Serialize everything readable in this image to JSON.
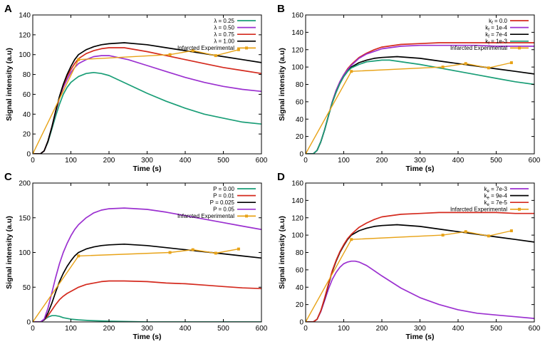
{
  "chart_data": [
    {
      "panel": "A",
      "type": "line",
      "xlabel": "Time (s)",
      "ylabel": "Signal intensity (a.u)",
      "xlim": [
        0,
        600
      ],
      "ylim": [
        0,
        140
      ],
      "xticks": [
        0,
        100,
        200,
        300,
        400,
        500,
        600
      ],
      "yticks": [
        0,
        20,
        40,
        60,
        80,
        100,
        120,
        140
      ],
      "legend_position": "top-right",
      "series": [
        {
          "name": "λ = 0.25",
          "color": "#1a9e77",
          "x": [
            0,
            20,
            30,
            40,
            50,
            60,
            70,
            80,
            90,
            100,
            110,
            120,
            140,
            160,
            180,
            200,
            250,
            300,
            350,
            400,
            450,
            500,
            550,
            600
          ],
          "y": [
            0,
            0,
            3,
            12,
            25,
            38,
            50,
            60,
            67,
            72,
            75,
            78,
            81,
            82,
            81,
            79,
            70,
            61,
            53,
            46,
            40,
            36,
            32,
            30
          ]
        },
        {
          "name": "λ = 0.50",
          "color": "#9b30d0",
          "x": [
            0,
            20,
            30,
            40,
            50,
            60,
            70,
            80,
            90,
            100,
            110,
            120,
            140,
            160,
            180,
            200,
            250,
            300,
            350,
            400,
            450,
            500,
            550,
            600
          ],
          "y": [
            0,
            0,
            3,
            13,
            27,
            42,
            56,
            67,
            75,
            82,
            87,
            91,
            95,
            98,
            99,
            99,
            95,
            89,
            83,
            77,
            72,
            68,
            65,
            63
          ]
        },
        {
          "name": "λ = 0.75",
          "color": "#d42a1e",
          "x": [
            0,
            20,
            30,
            40,
            50,
            60,
            70,
            80,
            90,
            100,
            110,
            120,
            140,
            160,
            180,
            200,
            240,
            300,
            350,
            400,
            450,
            500,
            550,
            600
          ],
          "y": [
            0,
            0,
            3,
            13,
            27,
            43,
            57,
            69,
            78,
            85,
            91,
            96,
            101,
            104,
            106,
            107,
            107,
            103,
            99,
            95,
            91,
            87,
            84,
            81
          ]
        },
        {
          "name": "λ = 1.00",
          "color": "#000000",
          "x": [
            0,
            20,
            30,
            40,
            50,
            60,
            70,
            80,
            90,
            100,
            110,
            120,
            140,
            160,
            180,
            200,
            240,
            300,
            350,
            400,
            450,
            500,
            550,
            600
          ],
          "y": [
            0,
            0,
            3,
            13,
            27,
            43,
            58,
            70,
            80,
            88,
            95,
            100,
            105,
            108,
            110,
            111,
            112,
            110,
            107,
            104,
            101,
            98,
            95,
            92
          ]
        },
        {
          "name": "Infarcted Experimental",
          "color": "#e8a318",
          "markers": true,
          "x": [
            0,
            120,
            360,
            420,
            480,
            540
          ],
          "y": [
            0,
            95,
            100,
            104,
            99,
            105
          ]
        }
      ]
    },
    {
      "panel": "B",
      "type": "line",
      "xlabel": "Time (s)",
      "ylabel": "Signal intensity (a.u)",
      "xlim": [
        0,
        600
      ],
      "ylim": [
        0,
        160
      ],
      "xticks": [
        0,
        100,
        200,
        300,
        400,
        500,
        600
      ],
      "yticks": [
        0,
        20,
        40,
        60,
        80,
        100,
        120,
        140,
        160
      ],
      "legend_position": "top-right",
      "series": [
        {
          "name": "kf = 0.0",
          "color": "#d42a1e",
          "x": [
            0,
            20,
            30,
            40,
            50,
            60,
            70,
            80,
            90,
            100,
            110,
            120,
            140,
            160,
            180,
            200,
            250,
            300,
            350,
            400,
            450,
            500,
            550,
            600
          ],
          "y": [
            0,
            0,
            4,
            14,
            28,
            44,
            60,
            73,
            83,
            91,
            98,
            103,
            111,
            116,
            120,
            123,
            126,
            127,
            128,
            128,
            128,
            128,
            128,
            128
          ]
        },
        {
          "name": "kf = 1e-4",
          "color": "#9b30d0",
          "x": [
            0,
            20,
            30,
            40,
            50,
            60,
            70,
            80,
            90,
            100,
            110,
            120,
            140,
            160,
            180,
            200,
            250,
            300,
            350,
            400,
            450,
            500,
            550,
            600
          ],
          "y": [
            0,
            0,
            4,
            14,
            28,
            44,
            60,
            73,
            83,
            91,
            97,
            102,
            110,
            115,
            118,
            121,
            124,
            125,
            125,
            125,
            125,
            124,
            124,
            124
          ]
        },
        {
          "name": "kf = 7e-4",
          "color": "#000000",
          "x": [
            0,
            20,
            30,
            40,
            50,
            60,
            70,
            80,
            90,
            100,
            110,
            120,
            140,
            160,
            180,
            200,
            240,
            300,
            350,
            400,
            450,
            500,
            550,
            600
          ],
          "y": [
            0,
            0,
            4,
            14,
            28,
            44,
            59,
            71,
            81,
            89,
            95,
            100,
            105,
            108,
            110,
            111,
            112,
            110,
            107,
            104,
            101,
            98,
            95,
            92
          ]
        },
        {
          "name": "kf = 1e-3",
          "color": "#1a9e77",
          "x": [
            0,
            20,
            30,
            40,
            50,
            60,
            70,
            80,
            90,
            100,
            110,
            120,
            140,
            160,
            180,
            200,
            220,
            300,
            350,
            400,
            450,
            500,
            550,
            600
          ],
          "y": [
            0,
            0,
            4,
            14,
            28,
            44,
            59,
            71,
            81,
            89,
            95,
            99,
            103,
            106,
            107,
            108,
            108,
            103,
            99,
            95,
            91,
            87,
            83,
            80
          ]
        },
        {
          "name": "Infarcted Experimental",
          "color": "#e8a318",
          "markers": true,
          "x": [
            0,
            120,
            360,
            420,
            480,
            540
          ],
          "y": [
            0,
            95,
            100,
            104,
            99,
            105
          ]
        }
      ]
    },
    {
      "panel": "C",
      "type": "line",
      "xlabel": "Time (s)",
      "ylabel": "Signal intensity (a.u)",
      "xlim": [
        0,
        600
      ],
      "ylim": [
        0,
        200
      ],
      "xticks": [
        0,
        100,
        200,
        300,
        400,
        500,
        600
      ],
      "yticks": [
        0,
        50,
        100,
        150,
        200
      ],
      "legend_position": "top-right",
      "series": [
        {
          "name": "P = 0.00",
          "color": "#1a9e77",
          "x": [
            0,
            20,
            30,
            40,
            50,
            60,
            70,
            80,
            100,
            120,
            150,
            200,
            300,
            400,
            500,
            600
          ],
          "y": [
            0,
            0,
            3,
            7,
            9,
            9,
            8,
            6,
            4,
            3,
            2,
            1,
            0,
            0,
            0,
            0
          ]
        },
        {
          "name": "P = 0.01",
          "color": "#d42a1e",
          "x": [
            0,
            20,
            30,
            40,
            50,
            60,
            70,
            80,
            90,
            100,
            120,
            140,
            160,
            180,
            200,
            240,
            300,
            350,
            400,
            450,
            500,
            550,
            600
          ],
          "y": [
            0,
            0,
            3,
            9,
            17,
            25,
            32,
            37,
            41,
            44,
            50,
            54,
            56,
            58,
            59,
            59,
            58,
            56,
            55,
            53,
            51,
            49,
            48
          ]
        },
        {
          "name": "P = 0.025",
          "color": "#000000",
          "x": [
            0,
            20,
            30,
            40,
            50,
            60,
            70,
            80,
            90,
            100,
            110,
            120,
            140,
            160,
            180,
            200,
            240,
            300,
            350,
            400,
            450,
            500,
            550,
            600
          ],
          "y": [
            0,
            0,
            3,
            13,
            27,
            43,
            58,
            70,
            80,
            88,
            95,
            100,
            105,
            108,
            110,
            111,
            112,
            110,
            107,
            104,
            101,
            98,
            95,
            92
          ]
        },
        {
          "name": "P = 0.05",
          "color": "#9b30d0",
          "x": [
            0,
            20,
            30,
            40,
            50,
            60,
            70,
            80,
            90,
            100,
            110,
            120,
            140,
            160,
            180,
            200,
            240,
            300,
            350,
            400,
            450,
            500,
            550,
            600
          ],
          "y": [
            0,
            0,
            4,
            20,
            42,
            64,
            84,
            100,
            113,
            124,
            133,
            140,
            150,
            157,
            161,
            163,
            164,
            162,
            158,
            153,
            148,
            143,
            138,
            133
          ]
        },
        {
          "name": "Infarcted Experimental",
          "color": "#e8a318",
          "markers": true,
          "x": [
            0,
            120,
            360,
            420,
            480,
            540
          ],
          "y": [
            0,
            95,
            100,
            104,
            99,
            105
          ]
        }
      ]
    },
    {
      "panel": "D",
      "type": "line",
      "xlabel": "Time (s)",
      "ylabel": "Signal intensity (a.u)",
      "xlim": [
        0,
        600
      ],
      "ylim": [
        0,
        160
      ],
      "xticks": [
        0,
        100,
        200,
        300,
        400,
        500,
        600
      ],
      "yticks": [
        0,
        20,
        40,
        60,
        80,
        100,
        120,
        140,
        160
      ],
      "legend_position": "top-right",
      "series": [
        {
          "name": "ke = 7e-3",
          "color": "#9b30d0",
          "x": [
            0,
            20,
            30,
            40,
            50,
            60,
            70,
            80,
            90,
            100,
            110,
            120,
            130,
            140,
            160,
            180,
            200,
            250,
            300,
            350,
            400,
            450,
            500,
            550,
            600
          ],
          "y": [
            0,
            0,
            3,
            12,
            25,
            38,
            49,
            57,
            63,
            67,
            69,
            70,
            70,
            69,
            65,
            59,
            53,
            39,
            28,
            20,
            14,
            10,
            8,
            6,
            4
          ]
        },
        {
          "name": "ke = 9e-4",
          "color": "#000000",
          "x": [
            0,
            20,
            30,
            40,
            50,
            60,
            70,
            80,
            90,
            100,
            110,
            120,
            140,
            160,
            180,
            200,
            240,
            300,
            350,
            400,
            450,
            500,
            550,
            600
          ],
          "y": [
            0,
            0,
            3,
            13,
            27,
            43,
            58,
            70,
            80,
            88,
            95,
            100,
            105,
            108,
            110,
            111,
            112,
            110,
            107,
            104,
            101,
            98,
            95,
            92
          ]
        },
        {
          "name": "ke = 7e-5",
          "color": "#d42a1e",
          "x": [
            0,
            20,
            30,
            40,
            50,
            60,
            70,
            80,
            90,
            100,
            110,
            120,
            140,
            160,
            180,
            200,
            250,
            300,
            350,
            400,
            450,
            500,
            550,
            600
          ],
          "y": [
            0,
            0,
            3,
            13,
            28,
            44,
            59,
            71,
            81,
            89,
            96,
            101,
            109,
            114,
            118,
            121,
            124,
            125,
            126,
            126,
            126,
            126,
            125,
            125
          ]
        },
        {
          "name": "Infarcted Experimental",
          "color": "#e8a318",
          "markers": true,
          "x": [
            0,
            120,
            360,
            420,
            480,
            540
          ],
          "y": [
            0,
            95,
            100,
            104,
            99,
            105
          ]
        }
      ]
    }
  ]
}
